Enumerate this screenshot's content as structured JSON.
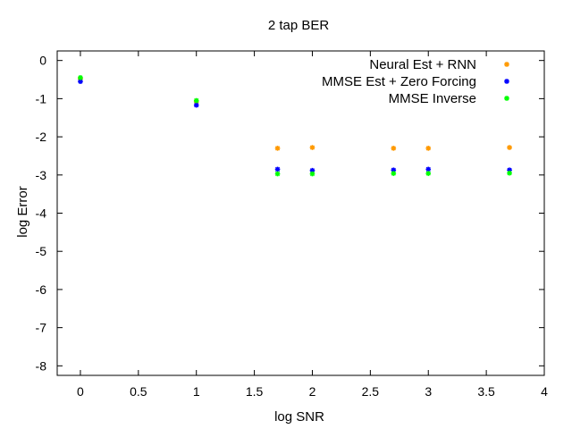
{
  "chart_data": {
    "type": "scatter",
    "title": "2 tap BER",
    "xlabel": "log SNR",
    "ylabel": "log Error",
    "xlim": [
      -0.2,
      4
    ],
    "ylim": [
      -8.25,
      0.25
    ],
    "xticks": [
      0,
      0.5,
      1,
      1.5,
      2,
      2.5,
      3,
      3.5,
      4
    ],
    "xtick_labels": [
      "0",
      "0.5",
      "1",
      "1.5",
      "2",
      "2.5",
      "3",
      "3.5",
      "4"
    ],
    "yticks": [
      0,
      -1,
      -2,
      -3,
      -4,
      -5,
      -6,
      -7,
      -8
    ],
    "ytick_labels": [
      "0",
      "-1",
      "-2",
      "-3",
      "-4",
      "-5",
      "-6",
      "-7",
      "-8"
    ],
    "grid": false,
    "legend_position": "top-right",
    "series": [
      {
        "name": "Neural Est + RNN",
        "color": "#ff9900",
        "x": [
          0,
          1,
          1.7,
          2,
          2.7,
          3,
          3.7
        ],
        "y": [
          -0.48,
          -1.08,
          -2.3,
          -2.28,
          -2.3,
          -2.3,
          -2.28
        ]
      },
      {
        "name": "MMSE Est + Zero Forcing",
        "color": "#0000ff",
        "x": [
          0,
          1,
          1.7,
          2,
          2.7,
          3,
          3.7
        ],
        "y": [
          -0.55,
          -1.17,
          -2.85,
          -2.88,
          -2.87,
          -2.85,
          -2.87
        ]
      },
      {
        "name": "MMSE Inverse",
        "color": "#00ff00",
        "x": [
          0,
          1,
          1.7,
          2,
          2.7,
          3,
          3.7
        ],
        "y": [
          -0.45,
          -1.05,
          -2.97,
          -2.97,
          -2.96,
          -2.96,
          -2.95
        ]
      }
    ]
  }
}
